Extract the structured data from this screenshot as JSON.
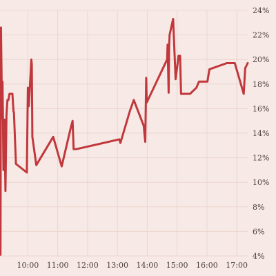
{
  "chart_data": {
    "type": "line",
    "title": "",
    "xlabel": "",
    "ylabel": "",
    "grid": true,
    "y_axis_side": "right",
    "xlim": [
      "09:04",
      "17:22"
    ],
    "ylim": [
      4,
      24
    ],
    "x_ticks": [
      "10:00",
      "11:00",
      "12:00",
      "13:00",
      "14:00",
      "15:00",
      "16:00",
      "17:00"
    ],
    "y_ticks": [
      "4%",
      "6%",
      "8%",
      "10%",
      "12%",
      "14%",
      "16%",
      "18%",
      "20%",
      "22%",
      "24%"
    ],
    "y_tick_values": [
      4,
      6,
      8,
      10,
      12,
      14,
      16,
      18,
      20,
      22,
      24
    ],
    "series": [
      {
        "color": "#c0383c",
        "points": [
          [
            "09:05",
            22.5
          ],
          [
            "09:05",
            4.1
          ],
          [
            "09:06",
            22.6
          ],
          [
            "09:07",
            19.0
          ],
          [
            "09:08",
            15.2
          ],
          [
            "09:09",
            18.2
          ],
          [
            "09:10",
            15.2
          ],
          [
            "09:11",
            11.0
          ],
          [
            "09:13",
            15.1
          ],
          [
            "09:15",
            9.3
          ],
          [
            "09:17",
            15.5
          ],
          [
            "09:19",
            16.7
          ],
          [
            "09:21",
            16.7
          ],
          [
            "09:23",
            17.2
          ],
          [
            "09:29",
            17.2
          ],
          [
            "09:31",
            15.8
          ],
          [
            "09:32",
            15.7
          ],
          [
            "09:36",
            11.5
          ],
          [
            "09:58",
            10.8
          ],
          [
            "10:00",
            17.7
          ],
          [
            "10:02",
            16.2
          ],
          [
            "10:05",
            18.5
          ],
          [
            "10:07",
            20.0
          ],
          [
            "10:08",
            19.6
          ],
          [
            "10:09",
            13.7
          ],
          [
            "10:17",
            11.4
          ],
          [
            "10:51",
            13.7
          ],
          [
            "11:08",
            11.3
          ],
          [
            "11:26",
            14.4
          ],
          [
            "11:30",
            15.0
          ],
          [
            "11:32",
            12.7
          ],
          [
            "11:38",
            12.7
          ],
          [
            "13:04",
            13.5
          ],
          [
            "13:06",
            13.2
          ],
          [
            "13:25",
            15.8
          ],
          [
            "13:33",
            16.7
          ],
          [
            "13:53",
            14.6
          ],
          [
            "13:56",
            13.3
          ],
          [
            "13:58",
            18.5
          ],
          [
            "13:59",
            16.5
          ],
          [
            "14:40",
            20.0
          ],
          [
            "14:41",
            21.2
          ],
          [
            "14:43",
            17.3
          ],
          [
            "14:44",
            21.0
          ],
          [
            "14:45",
            22.0
          ],
          [
            "14:52",
            23.3
          ],
          [
            "14:57",
            18.4
          ],
          [
            "15:03",
            20.3
          ],
          [
            "15:06",
            20.3
          ],
          [
            "15:08",
            17.2
          ],
          [
            "15:26",
            17.2
          ],
          [
            "15:39",
            17.7
          ],
          [
            "15:44",
            18.2
          ],
          [
            "16:01",
            18.2
          ],
          [
            "16:05",
            19.2
          ],
          [
            "16:40",
            19.7
          ],
          [
            "16:56",
            19.7
          ],
          [
            "17:14",
            17.2
          ],
          [
            "17:17",
            19.3
          ],
          [
            "17:22",
            19.7
          ]
        ]
      }
    ]
  }
}
